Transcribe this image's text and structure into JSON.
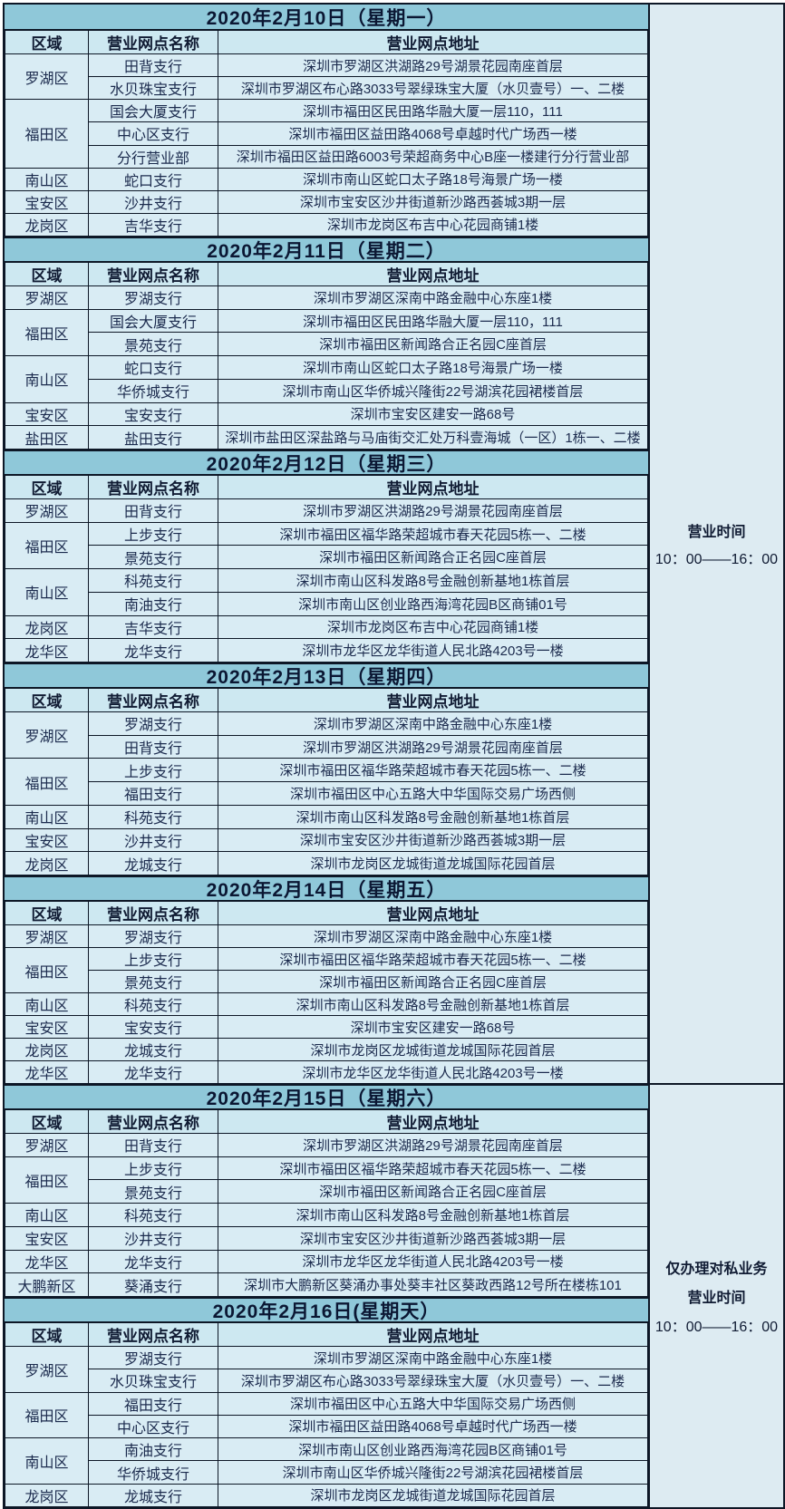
{
  "colors": {
    "date_header_bg": "#8fc8d9",
    "column_header_bg": "#cde8f1",
    "row_bg": "#d9ecf4",
    "side_bg": "#ddebf2",
    "border": "#0d1726",
    "text": "#17223d"
  },
  "side_notes": {
    "top": {
      "line1": "营业时间",
      "line2": "10：00——16：00"
    },
    "bottom": {
      "line1": "仅办理对私业务",
      "line2": "营业时间",
      "line3": "10：00——16：00"
    }
  },
  "columns": {
    "district": "区域",
    "branch": "营业网点名称",
    "address": "营业网点地址"
  },
  "sections": [
    {
      "date": "2020年2月10日（星期一）",
      "groups": [
        {
          "district": "罗湖区",
          "branches": [
            {
              "name": "田背支行",
              "address": "深圳市罗湖区洪湖路29号湖景花园南座首层"
            },
            {
              "name": "水贝珠宝支行",
              "address": "深圳市罗湖区布心路3033号翠绿珠宝大厦（水贝壹号）一、二楼"
            }
          ]
        },
        {
          "district": "福田区",
          "branches": [
            {
              "name": "国会大厦支行",
              "address": "深圳市福田区民田路华融大厦一层110，111"
            },
            {
              "name": "中心区支行",
              "address": "深圳市福田区益田路4068号卓越时代广场西一楼"
            },
            {
              "name": "分行营业部",
              "address": "深圳市福田区益田路6003号荣超商务中心B座一楼建行分行营业部"
            }
          ]
        },
        {
          "district": "南山区",
          "branches": [
            {
              "name": "蛇口支行",
              "address": "深圳市南山区蛇口太子路18号海景广场一楼"
            }
          ]
        },
        {
          "district": "宝安区",
          "branches": [
            {
              "name": "沙井支行",
              "address": "深圳市宝安区沙井街道新沙路西荟城3期一层"
            }
          ]
        },
        {
          "district": "龙岗区",
          "branches": [
            {
              "name": "吉华支行",
              "address": "深圳市龙岗区布吉中心花园商铺1楼"
            }
          ]
        }
      ]
    },
    {
      "date": "2020年2月11日（星期二）",
      "groups": [
        {
          "district": "罗湖区",
          "branches": [
            {
              "name": "罗湖支行",
              "address": "深圳市罗湖区深南中路金融中心东座1楼"
            }
          ]
        },
        {
          "district": "福田区",
          "branches": [
            {
              "name": "国会大厦支行",
              "address": "深圳市福田区民田路华融大厦一层110，111"
            },
            {
              "name": "景苑支行",
              "address": "深圳市福田区新闻路合正名园C座首层"
            }
          ]
        },
        {
          "district": "南山区",
          "branches": [
            {
              "name": "蛇口支行",
              "address": "深圳市南山区蛇口太子路18号海景广场一楼"
            },
            {
              "name": "华侨城支行",
              "address": "深圳市南山区华侨城兴隆街22号湖滨花园裙楼首层"
            }
          ]
        },
        {
          "district": "宝安区",
          "branches": [
            {
              "name": "宝安支行",
              "address": "深圳市宝安区建安一路68号"
            }
          ]
        },
        {
          "district": "盐田区",
          "branches": [
            {
              "name": "盐田支行",
              "address": "深圳市盐田区深盐路与马庙街交汇处万科壹海城（一区）1栋一、二楼"
            }
          ]
        }
      ]
    },
    {
      "date": "2020年2月12日（星期三）",
      "groups": [
        {
          "district": "罗湖区",
          "branches": [
            {
              "name": "田背支行",
              "address": "深圳市罗湖区洪湖路29号湖景花园南座首层"
            }
          ]
        },
        {
          "district": "福田区",
          "branches": [
            {
              "name": "上步支行",
              "address": "深圳市福田区福华路荣超城市春天花园5栋一、二楼"
            },
            {
              "name": "景苑支行",
              "address": "深圳市福田区新闻路合正名园C座首层"
            }
          ]
        },
        {
          "district": "南山区",
          "branches": [
            {
              "name": "科苑支行",
              "address": "深圳市南山区科发路8号金融创新基地1栋首层"
            },
            {
              "name": "南油支行",
              "address": "深圳市南山区创业路西海湾花园B区商铺01号"
            }
          ]
        },
        {
          "district": "龙岗区",
          "branches": [
            {
              "name": "吉华支行",
              "address": "深圳市龙岗区布吉中心花园商铺1楼"
            }
          ]
        },
        {
          "district": "龙华区",
          "branches": [
            {
              "name": "龙华支行",
              "address": "深圳市龙华区龙华街道人民北路4203号一楼"
            }
          ]
        }
      ]
    },
    {
      "date": "2020年2月13日（星期四）",
      "groups": [
        {
          "district": "罗湖区",
          "branches": [
            {
              "name": "罗湖支行",
              "address": "深圳市罗湖区深南中路金融中心东座1楼"
            },
            {
              "name": "田背支行",
              "address": "深圳市罗湖区洪湖路29号湖景花园南座首层"
            }
          ]
        },
        {
          "district": "福田区",
          "branches": [
            {
              "name": "上步支行",
              "address": "深圳市福田区福华路荣超城市春天花园5栋一、二楼"
            },
            {
              "name": "福田支行",
              "address": "深圳市福田区中心五路大中华国际交易广场西侧"
            }
          ]
        },
        {
          "district": "南山区",
          "branches": [
            {
              "name": "科苑支行",
              "address": "深圳市南山区科发路8号金融创新基地1栋首层"
            }
          ]
        },
        {
          "district": "宝安区",
          "branches": [
            {
              "name": "沙井支行",
              "address": "深圳市宝安区沙井街道新沙路西荟城3期一层"
            }
          ]
        },
        {
          "district": "龙岗区",
          "branches": [
            {
              "name": "龙城支行",
              "address": "深圳市龙岗区龙城街道龙城国际花园首层"
            }
          ]
        }
      ]
    },
    {
      "date": "2020年2月14日（星期五）",
      "groups": [
        {
          "district": "罗湖区",
          "branches": [
            {
              "name": "罗湖支行",
              "address": "深圳市罗湖区深南中路金融中心东座1楼"
            }
          ]
        },
        {
          "district": "福田区",
          "branches": [
            {
              "name": "上步支行",
              "address": "深圳市福田区福华路荣超城市春天花园5栋一、二楼"
            },
            {
              "name": "景苑支行",
              "address": "深圳市福田区新闻路合正名园C座首层"
            }
          ]
        },
        {
          "district": "南山区",
          "branches": [
            {
              "name": "科苑支行",
              "address": "深圳市南山区科发路8号金融创新基地1栋首层"
            }
          ]
        },
        {
          "district": "宝安区",
          "branches": [
            {
              "name": "宝安支行",
              "address": "深圳市宝安区建安一路68号"
            }
          ]
        },
        {
          "district": "龙岗区",
          "branches": [
            {
              "name": "龙城支行",
              "address": "深圳市龙岗区龙城街道龙城国际花园首层"
            }
          ]
        },
        {
          "district": "龙华区",
          "branches": [
            {
              "name": "龙华支行",
              "address": "深圳市龙华区龙华街道人民北路4203号一楼"
            }
          ]
        }
      ]
    },
    {
      "date": "2020年2月15日（星期六）",
      "groups": [
        {
          "district": "罗湖区",
          "branches": [
            {
              "name": "田背支行",
              "address": "深圳市罗湖区洪湖路29号湖景花园南座首层"
            }
          ]
        },
        {
          "district": "福田区",
          "branches": [
            {
              "name": "上步支行",
              "address": "深圳市福田区福华路荣超城市春天花园5栋一、二楼"
            },
            {
              "name": "景苑支行",
              "address": "深圳市福田区新闻路合正名园C座首层"
            }
          ]
        },
        {
          "district": "南山区",
          "branches": [
            {
              "name": "科苑支行",
              "address": "深圳市南山区科发路8号金融创新基地1栋首层"
            }
          ]
        },
        {
          "district": "宝安区",
          "branches": [
            {
              "name": "沙井支行",
              "address": "深圳市宝安区沙井街道新沙路西荟城3期一层"
            }
          ]
        },
        {
          "district": "龙华区",
          "branches": [
            {
              "name": "龙华支行",
              "address": "深圳市龙华区龙华街道人民北路4203号一楼"
            }
          ]
        },
        {
          "district": "大鹏新区",
          "branches": [
            {
              "name": "葵涌支行",
              "address": "深圳市大鹏新区葵涌办事处葵丰社区葵政西路12号所在楼栋101"
            }
          ]
        }
      ]
    },
    {
      "date": "2020年2月16日(星期天）",
      "groups": [
        {
          "district": "罗湖区",
          "branches": [
            {
              "name": "罗湖支行",
              "address": "深圳市罗湖区深南中路金融中心东座1楼"
            },
            {
              "name": "水贝珠宝支行",
              "address": "深圳市罗湖区布心路3033号翠绿珠宝大厦（水贝壹号）一、二楼"
            }
          ]
        },
        {
          "district": "福田区",
          "branches": [
            {
              "name": "福田支行",
              "address": "深圳市福田区中心五路大中华国际交易广场西侧"
            },
            {
              "name": "中心区支行",
              "address": "深圳市福田区益田路4068号卓越时代广场西一楼"
            }
          ]
        },
        {
          "district": "南山区",
          "branches": [
            {
              "name": "南油支行",
              "address": "深圳市南山区创业路西海湾花园B区商铺01号"
            },
            {
              "name": "华侨城支行",
              "address": "深圳市南山区华侨城兴隆街22号湖滨花园裙楼首层"
            }
          ]
        },
        {
          "district": "龙岗区",
          "branches": [
            {
              "name": "龙城支行",
              "address": "深圳市龙岗区龙城街道龙城国际花园首层"
            }
          ]
        }
      ]
    }
  ]
}
